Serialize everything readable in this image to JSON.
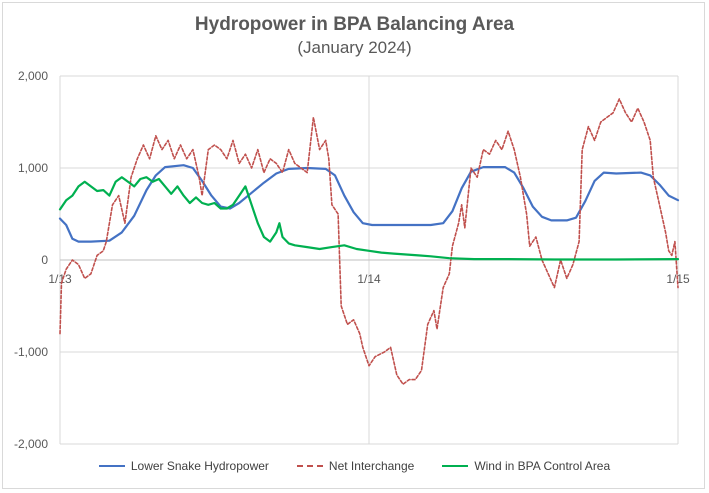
{
  "chart_data": {
    "type": "line",
    "title": "Hydropower in BPA Balancing Area",
    "subtitle": "(January 2024)",
    "xlabel": "",
    "ylabel": "",
    "x_tick_labels": [
      "1/13",
      "1/14",
      "1/15"
    ],
    "x_range_days": [
      0,
      2
    ],
    "ylim": [
      -2000,
      2000
    ],
    "y_ticks": [
      -2000,
      -1000,
      0,
      1000,
      2000
    ],
    "y_tick_labels": [
      "-2,000",
      "-1,000",
      "0",
      "1,000",
      "2,000"
    ],
    "grid": "horizontal major and vertical day lines",
    "legend_position": "bottom",
    "series": [
      {
        "name": "Lower Snake Hydropower",
        "color": "#4472c4",
        "style": "solid",
        "points": [
          [
            0.0,
            450
          ],
          [
            0.02,
            380
          ],
          [
            0.04,
            230
          ],
          [
            0.06,
            200
          ],
          [
            0.1,
            200
          ],
          [
            0.16,
            210
          ],
          [
            0.2,
            300
          ],
          [
            0.24,
            480
          ],
          [
            0.28,
            760
          ],
          [
            0.31,
            920
          ],
          [
            0.34,
            1010
          ],
          [
            0.4,
            1030
          ],
          [
            0.43,
            1000
          ],
          [
            0.46,
            860
          ],
          [
            0.49,
            700
          ],
          [
            0.52,
            580
          ],
          [
            0.55,
            560
          ],
          [
            0.58,
            620
          ],
          [
            0.62,
            730
          ],
          [
            0.66,
            840
          ],
          [
            0.7,
            940
          ],
          [
            0.74,
            990
          ],
          [
            0.8,
            1000
          ],
          [
            0.86,
            990
          ],
          [
            0.89,
            920
          ],
          [
            0.92,
            700
          ],
          [
            0.95,
            520
          ],
          [
            0.98,
            400
          ],
          [
            1.01,
            380
          ],
          [
            1.1,
            380
          ],
          [
            1.2,
            380
          ],
          [
            1.24,
            400
          ],
          [
            1.27,
            530
          ],
          [
            1.3,
            780
          ],
          [
            1.33,
            960
          ],
          [
            1.37,
            1010
          ],
          [
            1.44,
            1010
          ],
          [
            1.47,
            950
          ],
          [
            1.5,
            780
          ],
          [
            1.53,
            580
          ],
          [
            1.56,
            470
          ],
          [
            1.59,
            430
          ],
          [
            1.64,
            430
          ],
          [
            1.67,
            460
          ],
          [
            1.7,
            640
          ],
          [
            1.73,
            860
          ],
          [
            1.76,
            950
          ],
          [
            1.8,
            940
          ],
          [
            1.88,
            950
          ],
          [
            1.91,
            920
          ],
          [
            1.94,
            820
          ],
          [
            1.97,
            700
          ],
          [
            2.0,
            650
          ]
        ]
      },
      {
        "name": "Net Interchange",
        "color": "#c0504d",
        "style": "dashed",
        "points": [
          [
            0.0,
            -800
          ],
          [
            0.005,
            -250
          ],
          [
            0.02,
            -100
          ],
          [
            0.04,
            0
          ],
          [
            0.06,
            -50
          ],
          [
            0.08,
            -200
          ],
          [
            0.1,
            -150
          ],
          [
            0.12,
            50
          ],
          [
            0.14,
            100
          ],
          [
            0.15,
            200
          ],
          [
            0.17,
            600
          ],
          [
            0.19,
            700
          ],
          [
            0.21,
            400
          ],
          [
            0.23,
            900
          ],
          [
            0.25,
            1100
          ],
          [
            0.27,
            1250
          ],
          [
            0.29,
            1100
          ],
          [
            0.31,
            1350
          ],
          [
            0.33,
            1200
          ],
          [
            0.35,
            1300
          ],
          [
            0.37,
            1100
          ],
          [
            0.39,
            1250
          ],
          [
            0.41,
            1100
          ],
          [
            0.43,
            1200
          ],
          [
            0.45,
            900
          ],
          [
            0.46,
            700
          ],
          [
            0.48,
            1200
          ],
          [
            0.5,
            1250
          ],
          [
            0.52,
            1200
          ],
          [
            0.54,
            1100
          ],
          [
            0.56,
            1300
          ],
          [
            0.58,
            1050
          ],
          [
            0.6,
            1150
          ],
          [
            0.62,
            1000
          ],
          [
            0.64,
            1200
          ],
          [
            0.66,
            950
          ],
          [
            0.68,
            1100
          ],
          [
            0.7,
            1050
          ],
          [
            0.72,
            950
          ],
          [
            0.74,
            1200
          ],
          [
            0.76,
            1050
          ],
          [
            0.78,
            1000
          ],
          [
            0.8,
            950
          ],
          [
            0.82,
            1550
          ],
          [
            0.84,
            1200
          ],
          [
            0.86,
            1300
          ],
          [
            0.87,
            1100
          ],
          [
            0.88,
            600
          ],
          [
            0.9,
            500
          ],
          [
            0.91,
            -500
          ],
          [
            0.93,
            -700
          ],
          [
            0.95,
            -650
          ],
          [
            0.97,
            -800
          ],
          [
            0.98,
            -950
          ],
          [
            1.0,
            -1150
          ],
          [
            1.02,
            -1050
          ],
          [
            1.05,
            -1000
          ],
          [
            1.07,
            -950
          ],
          [
            1.09,
            -1250
          ],
          [
            1.11,
            -1350
          ],
          [
            1.13,
            -1300
          ],
          [
            1.15,
            -1300
          ],
          [
            1.17,
            -1200
          ],
          [
            1.19,
            -700
          ],
          [
            1.21,
            -550
          ],
          [
            1.22,
            -750
          ],
          [
            1.24,
            -300
          ],
          [
            1.26,
            -150
          ],
          [
            1.27,
            150
          ],
          [
            1.29,
            400
          ],
          [
            1.3,
            600
          ],
          [
            1.31,
            350
          ],
          [
            1.33,
            1000
          ],
          [
            1.35,
            900
          ],
          [
            1.37,
            1200
          ],
          [
            1.39,
            1150
          ],
          [
            1.41,
            1300
          ],
          [
            1.43,
            1200
          ],
          [
            1.45,
            1400
          ],
          [
            1.47,
            1200
          ],
          [
            1.49,
            900
          ],
          [
            1.51,
            500
          ],
          [
            1.52,
            150
          ],
          [
            1.54,
            250
          ],
          [
            1.56,
            0
          ],
          [
            1.58,
            -150
          ],
          [
            1.6,
            -300
          ],
          [
            1.62,
            0
          ],
          [
            1.64,
            -200
          ],
          [
            1.66,
            -50
          ],
          [
            1.68,
            200
          ],
          [
            1.69,
            1200
          ],
          [
            1.71,
            1450
          ],
          [
            1.73,
            1300
          ],
          [
            1.75,
            1500
          ],
          [
            1.77,
            1550
          ],
          [
            1.79,
            1600
          ],
          [
            1.81,
            1750
          ],
          [
            1.83,
            1600
          ],
          [
            1.85,
            1500
          ],
          [
            1.87,
            1650
          ],
          [
            1.89,
            1500
          ],
          [
            1.91,
            1300
          ],
          [
            1.92,
            900
          ],
          [
            1.94,
            600
          ],
          [
            1.96,
            300
          ],
          [
            1.97,
            100
          ],
          [
            1.98,
            50
          ],
          [
            1.99,
            200
          ],
          [
            2.0,
            -300
          ]
        ]
      },
      {
        "name": "Wind in BPA Control Area",
        "color": "#00b050",
        "style": "solid",
        "points": [
          [
            0.0,
            550
          ],
          [
            0.02,
            650
          ],
          [
            0.04,
            700
          ],
          [
            0.06,
            800
          ],
          [
            0.08,
            850
          ],
          [
            0.1,
            800
          ],
          [
            0.12,
            750
          ],
          [
            0.14,
            760
          ],
          [
            0.16,
            700
          ],
          [
            0.18,
            850
          ],
          [
            0.2,
            900
          ],
          [
            0.22,
            850
          ],
          [
            0.24,
            800
          ],
          [
            0.26,
            880
          ],
          [
            0.28,
            900
          ],
          [
            0.3,
            850
          ],
          [
            0.32,
            880
          ],
          [
            0.34,
            800
          ],
          [
            0.36,
            720
          ],
          [
            0.38,
            800
          ],
          [
            0.4,
            700
          ],
          [
            0.42,
            620
          ],
          [
            0.44,
            680
          ],
          [
            0.46,
            620
          ],
          [
            0.48,
            600
          ],
          [
            0.5,
            620
          ],
          [
            0.52,
            560
          ],
          [
            0.54,
            560
          ],
          [
            0.56,
            600
          ],
          [
            0.58,
            700
          ],
          [
            0.6,
            800
          ],
          [
            0.62,
            600
          ],
          [
            0.64,
            400
          ],
          [
            0.66,
            250
          ],
          [
            0.68,
            200
          ],
          [
            0.7,
            300
          ],
          [
            0.71,
            400
          ],
          [
            0.72,
            250
          ],
          [
            0.74,
            180
          ],
          [
            0.76,
            160
          ],
          [
            0.8,
            140
          ],
          [
            0.84,
            120
          ],
          [
            0.88,
            140
          ],
          [
            0.92,
            160
          ],
          [
            0.96,
            120
          ],
          [
            1.0,
            100
          ],
          [
            1.04,
            80
          ],
          [
            1.08,
            70
          ],
          [
            1.12,
            60
          ],
          [
            1.16,
            50
          ],
          [
            1.2,
            40
          ],
          [
            1.26,
            20
          ],
          [
            1.34,
            10
          ],
          [
            1.44,
            10
          ],
          [
            1.6,
            5
          ],
          [
            1.8,
            5
          ],
          [
            2.0,
            10
          ]
        ]
      }
    ]
  }
}
